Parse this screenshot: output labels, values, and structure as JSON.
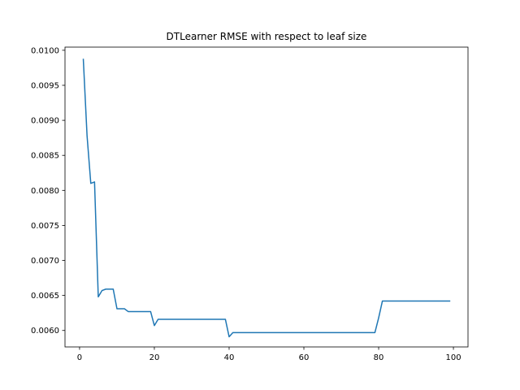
{
  "chart_data": {
    "type": "line",
    "title": "DTLearner RMSE with respect to leaf size",
    "xlabel": "",
    "ylabel": "",
    "xlim": [
      -3.9,
      103.9
    ],
    "ylim": [
      0.005765,
      0.010045
    ],
    "x_ticks": [
      0,
      20,
      40,
      60,
      80,
      100
    ],
    "y_ticks": [
      0.006,
      0.0065,
      0.007,
      0.0075,
      0.008,
      0.0085,
      0.009,
      0.0095,
      0.01
    ],
    "y_tick_labels": [
      "0.0060",
      "0.0065",
      "0.0070",
      "0.0075",
      "0.0080",
      "0.0085",
      "0.0090",
      "0.0095",
      "0.0100"
    ],
    "grid": false,
    "legend": "none",
    "series": [
      {
        "color": "#1f77b4",
        "x": [
          1,
          2,
          3,
          4,
          5,
          6,
          7,
          8,
          9,
          10,
          11,
          12,
          13,
          14,
          15,
          16,
          17,
          18,
          19,
          20,
          21,
          22,
          23,
          24,
          25,
          26,
          27,
          28,
          29,
          30,
          31,
          32,
          33,
          34,
          35,
          36,
          37,
          38,
          39,
          40,
          41,
          42,
          43,
          44,
          45,
          46,
          47,
          48,
          49,
          50,
          51,
          52,
          53,
          54,
          55,
          56,
          57,
          58,
          59,
          60,
          61,
          62,
          63,
          64,
          65,
          66,
          67,
          68,
          69,
          70,
          71,
          72,
          73,
          74,
          75,
          76,
          77,
          78,
          79,
          80,
          81,
          82,
          83,
          84,
          85,
          86,
          87,
          88,
          89,
          90,
          91,
          92,
          93,
          94,
          95,
          96,
          97,
          98,
          99
        ],
        "y": [
          0.00987,
          0.00878,
          0.0081,
          0.00812,
          0.00648,
          0.00657,
          0.00659,
          0.00659,
          0.00659,
          0.00631,
          0.00631,
          0.00631,
          0.00627,
          0.00627,
          0.00627,
          0.00627,
          0.00627,
          0.00627,
          0.00627,
          0.00607,
          0.00616,
          0.00616,
          0.00616,
          0.00616,
          0.00616,
          0.00616,
          0.00616,
          0.00616,
          0.00616,
          0.00616,
          0.00616,
          0.00616,
          0.00616,
          0.00616,
          0.00616,
          0.00616,
          0.00616,
          0.00616,
          0.00616,
          0.00591,
          0.00597,
          0.00597,
          0.00597,
          0.00597,
          0.00597,
          0.00597,
          0.00597,
          0.00597,
          0.00597,
          0.00597,
          0.00597,
          0.00597,
          0.00597,
          0.00597,
          0.00597,
          0.00597,
          0.00597,
          0.00597,
          0.00597,
          0.00597,
          0.00597,
          0.00597,
          0.00597,
          0.00597,
          0.00597,
          0.00597,
          0.00597,
          0.00597,
          0.00597,
          0.00597,
          0.00597,
          0.00597,
          0.00597,
          0.00597,
          0.00597,
          0.00597,
          0.00597,
          0.00597,
          0.00597,
          0.00618,
          0.00642,
          0.00642,
          0.00642,
          0.00642,
          0.00642,
          0.00642,
          0.00642,
          0.00642,
          0.00642,
          0.00642,
          0.00642,
          0.00642,
          0.00642,
          0.00642,
          0.00642,
          0.00642,
          0.00642,
          0.00642,
          0.00642
        ]
      }
    ]
  }
}
